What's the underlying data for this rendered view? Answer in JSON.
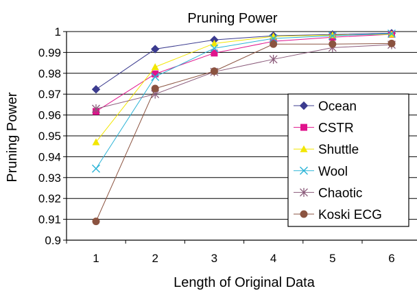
{
  "chart_data": {
    "type": "line",
    "title": "Pruning Power",
    "xlabel": "Length of Original Data",
    "ylabel": "Pruning Power",
    "x": [
      1,
      2,
      3,
      4,
      5,
      6
    ],
    "ylim": [
      0.9,
      1.0
    ],
    "yticks": [
      "0.9",
      "0.91",
      "0.92",
      "0.93",
      "0.94",
      "0.95",
      "0.96",
      "0.97",
      "0.98",
      "0.99",
      "1"
    ],
    "xticks": [
      "1",
      "2",
      "3",
      "4",
      "5",
      "6"
    ],
    "grid": "horizontal",
    "legend_position": "right",
    "series": [
      {
        "name": "Ocean",
        "marker": "diamond",
        "color": "#3b3b8f",
        "values": [
          0.9723,
          0.9916,
          0.996,
          0.998,
          0.9986,
          0.9992
        ]
      },
      {
        "name": "CSTR",
        "marker": "square",
        "color": "#e0138c",
        "values": [
          0.9617,
          0.9797,
          0.9897,
          0.9953,
          0.9973,
          0.9987
        ]
      },
      {
        "name": "Shuttle",
        "marker": "triangle",
        "color": "#f2e600",
        "values": [
          0.947,
          0.983,
          0.9943,
          0.9977,
          0.9983,
          0.9987
        ]
      },
      {
        "name": "Wool",
        "marker": "x",
        "color": "#2ab3d6",
        "values": [
          0.9343,
          0.9783,
          0.992,
          0.9967,
          0.998,
          0.999
        ]
      },
      {
        "name": "Chaotic",
        "marker": "asterisk",
        "color": "#8a5a7a",
        "values": [
          0.963,
          0.97,
          0.9807,
          0.9867,
          0.9923,
          0.9937
        ]
      },
      {
        "name": "Koski ECG",
        "marker": "circle",
        "color": "#8b5340",
        "values": [
          0.909,
          0.9727,
          0.981,
          0.994,
          0.994,
          0.9943
        ]
      }
    ]
  }
}
